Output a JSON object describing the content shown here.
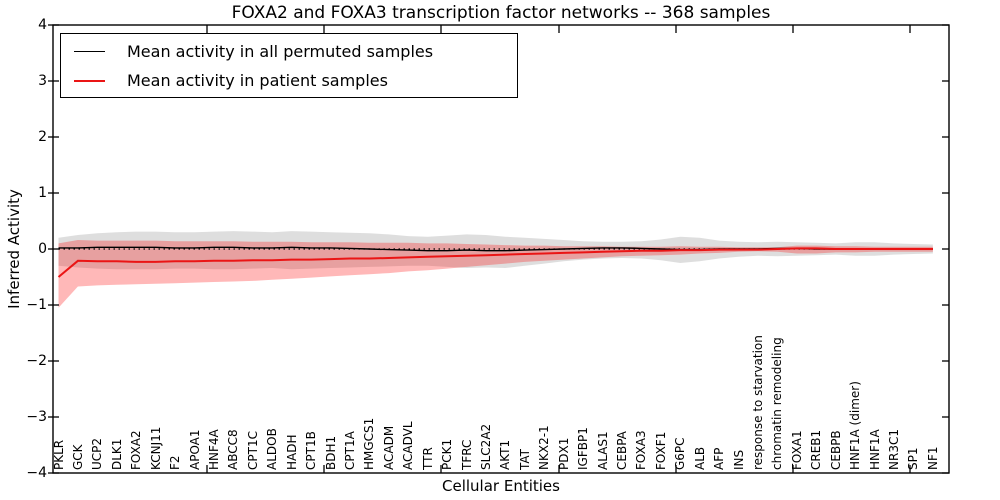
{
  "figure_title": "FOXA2 and FOXA3 transcription factor networks -- 368 samples",
  "chart_data": {
    "type": "line",
    "title": "FOXA2 and FOXA3 transcription factor networks -- 368 samples",
    "xlabel": "Cellular Entities",
    "ylabel": "Inferred Activity",
    "ylim": [
      -4,
      4
    ],
    "yticks": [
      -4,
      -3,
      -2,
      -1,
      0,
      1,
      2,
      3,
      4
    ],
    "grid": false,
    "legend_position": "upper left",
    "background_color": "#ffffff",
    "categories": [
      "PKLR",
      "GCK",
      "UCP2",
      "DLK1",
      "FOXA2",
      "KCNJ11",
      "F2",
      "APOA1",
      "HNF4A",
      "ABCC8",
      "CPT1C",
      "ALDOB",
      "HADH",
      "CPT1B",
      "BDH1",
      "CPT1A",
      "HMGCS1",
      "ACADM",
      "ACADVL",
      "TTR",
      "PCK1",
      "TFRC",
      "SLC2A2",
      "AKT1",
      "TAT",
      "NKX2-1",
      "PDX1",
      "IGFBP1",
      "ALAS1",
      "CEBPA",
      "FOXA3",
      "FOXF1",
      "G6PC",
      "ALB",
      "AFP",
      "INS",
      "response to starvation",
      "chromatin remodeling",
      "FOXA1",
      "CREB1",
      "CEBPB",
      "HNF1A (dimer)",
      "HNF1A",
      "NR3C1",
      "SP1",
      "NF1"
    ],
    "zero_line": {
      "y": 0,
      "style": "dotted",
      "color": "#000000"
    },
    "series": [
      {
        "name": "Mean activity in all permuted samples",
        "color": "#000000",
        "line_width": 1.4,
        "values": [
          0.02,
          0.02,
          0.03,
          0.03,
          0.03,
          0.03,
          0.02,
          0.02,
          0.03,
          0.03,
          0.02,
          0.02,
          0.03,
          0.02,
          0.02,
          0.01,
          0.0,
          -0.01,
          -0.02,
          -0.03,
          -0.03,
          -0.02,
          -0.03,
          -0.03,
          -0.02,
          -0.01,
          0.0,
          0.01,
          0.02,
          0.02,
          0.01,
          0.0,
          -0.01,
          -0.01,
          0.0,
          0.0,
          0.0,
          0.01,
          0.01,
          0.0,
          0.0,
          0.0,
          0.0,
          0.0,
          0.0,
          0.0
        ],
        "band": {
          "fill_color": "#000000",
          "fill_opacity": 0.13,
          "upper": [
            0.2,
            0.25,
            0.28,
            0.3,
            0.31,
            0.31,
            0.3,
            0.3,
            0.31,
            0.32,
            0.31,
            0.3,
            0.32,
            0.31,
            0.3,
            0.29,
            0.28,
            0.26,
            0.23,
            0.22,
            0.24,
            0.26,
            0.25,
            0.22,
            0.2,
            0.18,
            0.16,
            0.14,
            0.13,
            0.13,
            0.14,
            0.17,
            0.22,
            0.2,
            0.15,
            0.13,
            0.12,
            0.13,
            0.12,
            0.11,
            0.1,
            0.12,
            0.12,
            0.1,
            0.09,
            0.08
          ],
          "lower": [
            -0.3,
            -0.33,
            -0.35,
            -0.36,
            -0.36,
            -0.36,
            -0.35,
            -0.35,
            -0.36,
            -0.36,
            -0.35,
            -0.34,
            -0.36,
            -0.35,
            -0.34,
            -0.33,
            -0.32,
            -0.31,
            -0.3,
            -0.3,
            -0.32,
            -0.34,
            -0.33,
            -0.34,
            -0.3,
            -0.26,
            -0.22,
            -0.19,
            -0.17,
            -0.16,
            -0.17,
            -0.2,
            -0.25,
            -0.22,
            -0.17,
            -0.14,
            -0.12,
            -0.13,
            -0.12,
            -0.11,
            -0.1,
            -0.12,
            -0.12,
            -0.1,
            -0.09,
            -0.08
          ]
        }
      },
      {
        "name": "Mean activity in patient samples",
        "color": "#ea1515",
        "line_width": 2,
        "values": [
          -0.5,
          -0.21,
          -0.22,
          -0.22,
          -0.23,
          -0.23,
          -0.22,
          -0.22,
          -0.21,
          -0.21,
          -0.2,
          -0.2,
          -0.19,
          -0.19,
          -0.18,
          -0.17,
          -0.17,
          -0.16,
          -0.15,
          -0.14,
          -0.13,
          -0.12,
          -0.11,
          -0.1,
          -0.09,
          -0.08,
          -0.07,
          -0.06,
          -0.05,
          -0.04,
          -0.03,
          -0.03,
          -0.02,
          -0.02,
          -0.01,
          -0.01,
          -0.01,
          0.0,
          0.01,
          0.01,
          0.0,
          0.0,
          0.0,
          0.0,
          0.0,
          0.0
        ],
        "band": {
          "fill_color": "#ff0000",
          "fill_opacity": 0.28,
          "upper": [
            0.1,
            0.16,
            0.15,
            0.15,
            0.15,
            0.15,
            0.14,
            0.14,
            0.14,
            0.14,
            0.13,
            0.13,
            0.13,
            0.12,
            0.12,
            0.12,
            0.11,
            0.11,
            0.11,
            0.1,
            0.1,
            0.09,
            0.08,
            0.07,
            0.06,
            0.06,
            0.05,
            0.05,
            0.05,
            0.04,
            0.04,
            0.04,
            0.05,
            0.04,
            0.04,
            0.03,
            0.03,
            0.03,
            0.06,
            0.06,
            0.05,
            0.05,
            0.04,
            0.04,
            0.04,
            0.04
          ],
          "lower": [
            -1.05,
            -0.67,
            -0.65,
            -0.64,
            -0.63,
            -0.62,
            -0.61,
            -0.6,
            -0.59,
            -0.58,
            -0.57,
            -0.55,
            -0.53,
            -0.51,
            -0.49,
            -0.47,
            -0.45,
            -0.43,
            -0.4,
            -0.38,
            -0.35,
            -0.32,
            -0.29,
            -0.26,
            -0.23,
            -0.21,
            -0.19,
            -0.17,
            -0.15,
            -0.13,
            -0.12,
            -0.11,
            -0.1,
            -0.08,
            -0.07,
            -0.05,
            -0.04,
            -0.05,
            -0.08,
            -0.08,
            -0.06,
            -0.06,
            -0.05,
            -0.05,
            -0.05,
            -0.05
          ]
        }
      }
    ]
  }
}
